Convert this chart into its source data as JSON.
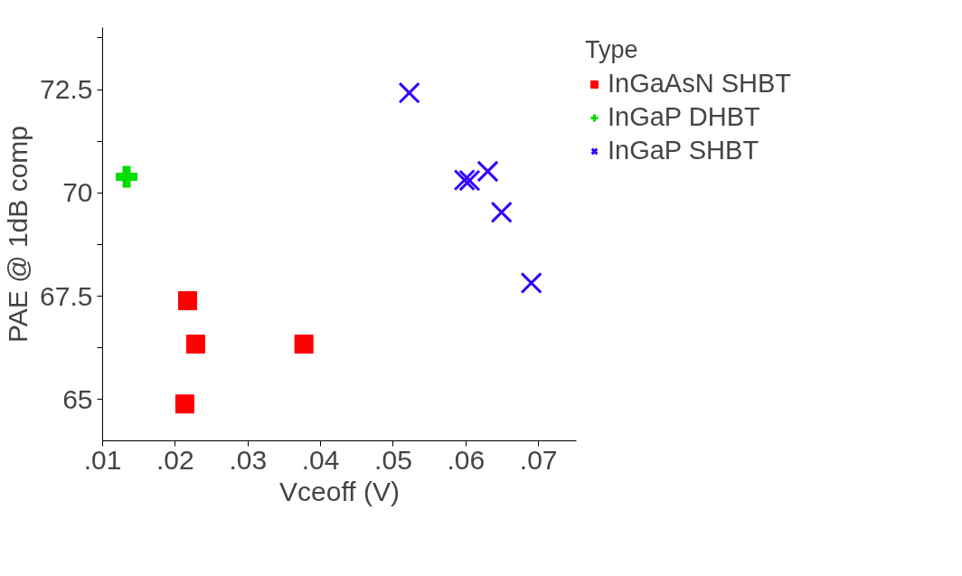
{
  "chart_data": {
    "type": "scatter",
    "xlabel": "Vceoff (V)",
    "ylabel": "PAE @ 1dB comp",
    "legend_title": "Type",
    "xlim": [
      0.01,
      0.0752
    ],
    "ylim": [
      64,
      74
    ],
    "xticks": [
      {
        "value": 0.01,
        "label": ".01"
      },
      {
        "value": 0.02,
        "label": ".02"
      },
      {
        "value": 0.03,
        "label": ".03"
      },
      {
        "value": 0.04,
        "label": ".04"
      },
      {
        "value": 0.05,
        "label": ".05"
      },
      {
        "value": 0.06,
        "label": ".06"
      },
      {
        "value": 0.07,
        "label": ".07"
      }
    ],
    "yticks": [
      65,
      {
        "value": 66.25,
        "label": null
      },
      67.5,
      {
        "value": 68.75,
        "label": null
      },
      70,
      {
        "value": 71.25,
        "label": null
      },
      72.5,
      {
        "value": 73.75,
        "label": null
      }
    ],
    "grid": false,
    "legend": "right",
    "series": [
      {
        "name": "InGaAsN SHBT",
        "color": "#ff0000",
        "marker": "square",
        "x": [
          0.0217,
          0.0228,
          0.0377,
          0.0213
        ],
        "values": [
          67.39,
          66.34,
          66.34,
          64.89
        ]
      },
      {
        "name": "InGaP DHBT",
        "color": "#00dd00",
        "marker": "cross",
        "x": [
          0.0133
        ],
        "values": [
          70.39
        ]
      },
      {
        "name": "InGaP SHBT",
        "color": "#3300ff",
        "marker": "x",
        "x": [
          0.0522,
          0.0598,
          0.0605,
          0.063,
          0.0649,
          0.069
        ],
        "values": [
          72.42,
          70.31,
          70.3,
          70.52,
          69.53,
          67.82
        ]
      }
    ]
  }
}
